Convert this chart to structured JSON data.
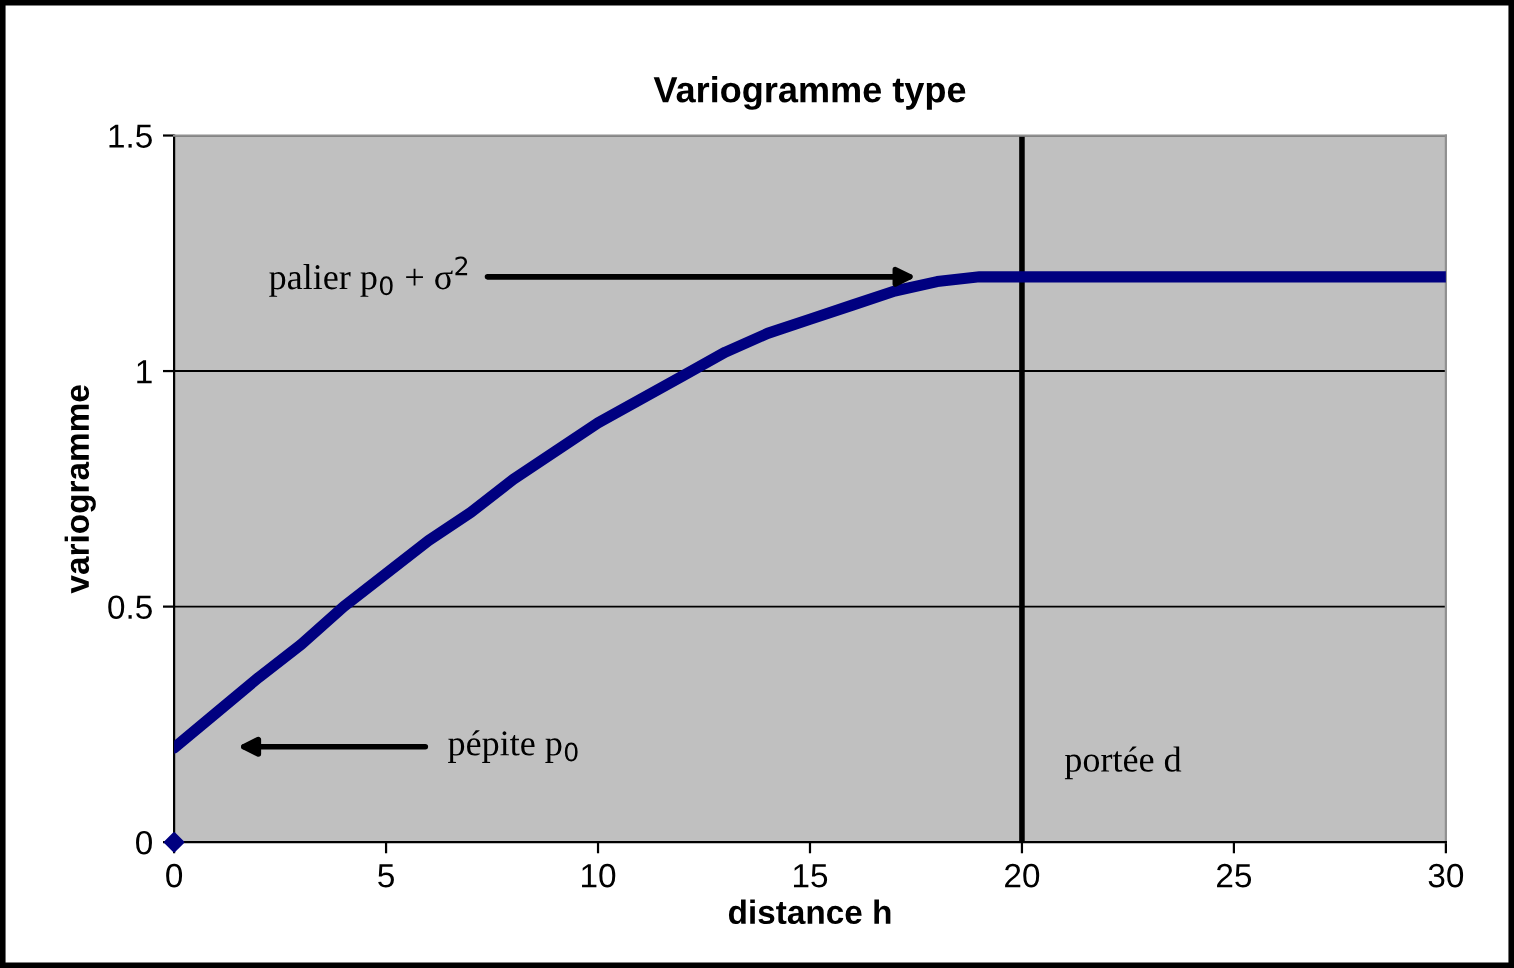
{
  "chart_data": {
    "type": "line",
    "title": "Variogramme type",
    "xlabel": "distance h",
    "ylabel": "variogramme",
    "series": [
      {
        "color": "#000080",
        "x": [
          0,
          1,
          2,
          3,
          4,
          5,
          6,
          7,
          8,
          9,
          10,
          11,
          12,
          13,
          14,
          15,
          16,
          17,
          18,
          19,
          20,
          30
        ],
        "values": [
          0.2,
          0.275,
          0.35,
          0.42,
          0.5,
          0.57,
          0.64,
          0.7,
          0.77,
          0.83,
          0.89,
          0.94,
          0.99,
          1.04,
          1.08,
          1.11,
          1.14,
          1.17,
          1.19,
          1.2,
          1.2,
          1.2
        ]
      },
      {
        "type": "scatter",
        "color": "#000080",
        "marker": "diamond",
        "x": [
          0
        ],
        "values": [
          0
        ]
      }
    ],
    "xlim": [
      0,
      30
    ],
    "xticks": [
      0,
      5,
      10,
      15,
      20,
      25,
      30
    ],
    "ylim": [
      0,
      1.5
    ],
    "yticks": [
      0,
      0.5,
      1,
      1.5
    ],
    "grid": "y",
    "ref_lines": [
      {
        "axis": "x",
        "value": 20,
        "label": "portée d",
        "color": "#000000"
      }
    ],
    "annotations": [
      {
        "text": "palier p$_{0}$ + σ$^{2}$",
        "x": 17.5,
        "y": 1.2
      },
      "pépite p$_{0}$"
    ]
  }
}
